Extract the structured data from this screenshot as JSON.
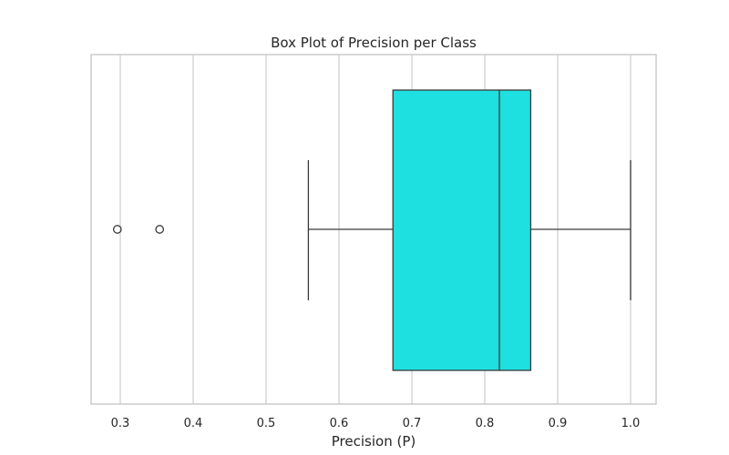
{
  "chart_data": {
    "type": "box",
    "title": "Box Plot of Precision per Class",
    "xlabel": "Precision (P)",
    "ylabel": "",
    "orientation": "horizontal",
    "xlim": [
      0.26,
      1.035
    ],
    "x_ticks": [
      0.3,
      0.4,
      0.5,
      0.6,
      0.7,
      0.8,
      0.9,
      1.0
    ],
    "x_tick_labels": [
      "0.3",
      "0.4",
      "0.5",
      "0.6",
      "0.7",
      "0.8",
      "0.9",
      "1.0"
    ],
    "grid": "vertical",
    "box": {
      "whisker_low": 0.558,
      "q1": 0.674,
      "median": 0.82,
      "q3": 0.863,
      "whisker_high": 1.0,
      "outliers": [
        0.296,
        0.354
      ],
      "color": "#1ee0e0"
    }
  },
  "colors": {
    "grid": "#d0d0d0",
    "frame": "#cccccc",
    "lines": "#3a3a3a",
    "text": "#262626"
  }
}
